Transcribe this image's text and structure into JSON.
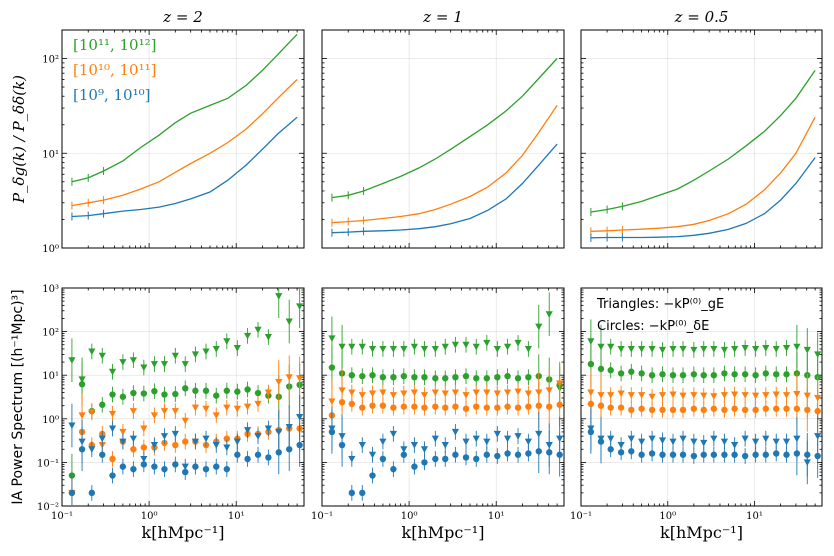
{
  "colors": {
    "high": "#2ca02c",
    "mid": "#ff7f0e",
    "low": "#1f77b4"
  },
  "chart_data": {
    "type": "line",
    "panel_titles": [
      "z = 2",
      "z = 1",
      "z = 0.5"
    ],
    "xlabel": "k[hMpc⁻¹]",
    "xscale": "log",
    "xlim": [
      0.1,
      60
    ],
    "xtick_labels": [
      "10⁻¹",
      "10⁰",
      "10¹"
    ],
    "top_row": {
      "ylabel": "P_δg(k) / P_δδ(k)",
      "yscale": "log",
      "ylim": [
        1,
        200
      ],
      "ytick_labels": [
        "10⁰",
        "10¹",
        "10²"
      ],
      "legend": [
        {
          "label": "[10¹¹, 10¹²]",
          "color": "#2ca02c"
        },
        {
          "label": "[10¹⁰, 10¹¹]",
          "color": "#ff7f0e"
        },
        {
          "label": "[10⁹, 10¹⁰]",
          "color": "#1f77b4"
        }
      ],
      "k": [
        0.13,
        0.2,
        0.3,
        0.5,
        0.8,
        1.3,
        2,
        3,
        5,
        8,
        13,
        20,
        30,
        50
      ],
      "panels": [
        {
          "title": "z = 2",
          "series": [
            {
              "name": "[10¹¹, 10¹²]",
              "values": [
                5.0,
                5.5,
                6.5,
                8.3,
                11.5,
                15.5,
                21,
                26.5,
                32,
                38,
                52,
                75,
                110,
                180
              ]
            },
            {
              "name": "[10¹⁰, 10¹¹]",
              "values": [
                2.8,
                3.0,
                3.2,
                3.6,
                4.2,
                5.0,
                6.3,
                7.8,
                10,
                13,
                18,
                26,
                38,
                60
              ]
            },
            {
              "name": "[10⁹, 10¹⁰]",
              "values": [
                2.15,
                2.2,
                2.3,
                2.45,
                2.55,
                2.7,
                2.95,
                3.3,
                3.9,
                5.2,
                7.5,
                11,
                16,
                24
              ]
            }
          ]
        },
        {
          "title": "z = 1",
          "series": [
            {
              "name": "[10¹¹, 10¹²]",
              "values": [
                3.4,
                3.6,
                4.0,
                4.8,
                5.7,
                7.0,
                8.7,
                11,
                15,
                20,
                28,
                40,
                60,
                100
              ]
            },
            {
              "name": "[10¹⁰, 10¹¹]",
              "values": [
                1.85,
                1.9,
                1.95,
                2.05,
                2.15,
                2.3,
                2.55,
                2.9,
                3.5,
                4.4,
                6.2,
                9.5,
                16,
                32
              ]
            },
            {
              "name": "[10⁹, 10¹⁰]",
              "values": [
                1.45,
                1.47,
                1.5,
                1.52,
                1.55,
                1.6,
                1.68,
                1.8,
                2.05,
                2.5,
                3.3,
                4.8,
                7.3,
                12.5
              ]
            }
          ]
        },
        {
          "title": "z = 0.5",
          "series": [
            {
              "name": "[10¹¹, 10¹²]",
              "values": [
                2.4,
                2.55,
                2.75,
                3.1,
                3.6,
                4.2,
                5.2,
                6.5,
                8.7,
                12,
                17,
                25,
                38,
                75
              ]
            },
            {
              "name": "[10¹⁰, 10¹¹]",
              "values": [
                1.5,
                1.52,
                1.55,
                1.58,
                1.62,
                1.68,
                1.78,
                1.95,
                2.3,
                2.9,
                4.1,
                6.2,
                10,
                24
              ]
            },
            {
              "name": "[10⁹, 10¹⁰]",
              "values": [
                1.28,
                1.29,
                1.29,
                1.29,
                1.3,
                1.32,
                1.36,
                1.43,
                1.57,
                1.82,
                2.3,
                3.2,
                4.8,
                9
              ]
            }
          ]
        }
      ]
    },
    "bottom_row": {
      "ylabel": "IA Power Spectrum [(h⁻¹Mpc)³]",
      "yscale": "log",
      "ylim": [
        0.01,
        1000
      ],
      "ytick_labels": [
        "10⁻²",
        "10⁻¹",
        "10⁰",
        "10¹",
        "10²",
        "10³"
      ],
      "legend_text": [
        "Triangles: −kP⁽⁰⁾_gE",
        "Circles: −kP⁽⁰⁾_δE"
      ],
      "k": [
        0.13,
        0.17,
        0.22,
        0.29,
        0.38,
        0.5,
        0.66,
        0.87,
        1.15,
        1.5,
        2.0,
        2.6,
        3.4,
        4.5,
        5.9,
        7.8,
        10.3,
        13.5,
        17.8,
        23.4,
        30.8,
        40.6,
        53.5
      ],
      "panels": [
        {
          "title": "z = 2",
          "series": [
            {
              "name": "circles [10¹¹, 10¹²]",
              "marker": "circle",
              "values": [
                0.05,
                6.2,
                1.5,
                2.1,
                3.6,
                3.2,
                3.9,
                3.8,
                4.3,
                3.6,
                3.7,
                5.0,
                4.4,
                4.4,
                3.4,
                4.4,
                4.2,
                4.7,
                3.9,
                3.4,
                3.2,
                5.5,
                6.0
              ]
            },
            {
              "name": "triangles [10¹¹, 10¹²]",
              "marker": "triangle",
              "values": [
                22,
                8.0,
                35,
                28,
                12,
                20,
                22,
                15,
                18,
                18,
                28,
                18,
                30,
                35,
                40,
                60,
                42,
                80,
                110,
                75,
                650,
                170,
                380
              ]
            },
            {
              "name": "circles [10¹⁰, 10¹¹]",
              "marker": "circle",
              "values": [
                0.02,
                0.5,
                0.25,
                0.45,
                0.12,
                0.3,
                0.2,
                0.22,
                0.22,
                0.28,
                0.25,
                0.3,
                0.3,
                0.25,
                0.3,
                0.35,
                0.35,
                0.45,
                0.45,
                0.5,
                0.55,
                0.6,
                0.6
              ]
            },
            {
              "name": "triangles [10¹⁰, 10¹¹]",
              "marker": "triangle",
              "values": [
                0.02,
                1.2,
                1.4,
                0.25,
                1.3,
                0.5,
                1.5,
                0.6,
                1.2,
                1.5,
                1.5,
                0.9,
                1.8,
                1.7,
                1.2,
                1.8,
                1.7,
                1.9,
                2.2,
                4.0,
                7.0,
                9.0,
                8.5
              ]
            },
            {
              "name": "circles [10⁹, 10¹⁰]",
              "marker": "circle",
              "values": [
                0.02,
                0.2,
                0.02,
                0.15,
                0.05,
                0.08,
                0.07,
                0.09,
                0.08,
                0.07,
                0.09,
                0.06,
                0.08,
                0.07,
                0.08,
                0.07,
                0.15,
                0.12,
                0.15,
                0.13,
                0.17,
                0.2,
                0.25
              ]
            },
            {
              "name": "triangles [10⁹, 10¹⁰]",
              "marker": "triangle",
              "values": [
                0.7,
                0.3,
                0.2,
                0.35,
                0.6,
                0.3,
                0.35,
                0.12,
                0.25,
                0.4,
                0.45,
                0.08,
                0.3,
                0.35,
                0.25,
                0.22,
                0.3,
                0.55,
                0.4,
                0.6,
                0.5,
                0.65,
                1.1
              ]
            }
          ]
        },
        {
          "title": "z = 1",
          "series": [
            {
              "name": "circles [10¹¹, 10¹²]",
              "marker": "circle",
              "values": [
                15,
                11,
                10,
                9.5,
                10,
                9.0,
                9.0,
                9.5,
                9.0,
                9.0,
                8.5,
                8.5,
                9.0,
                9.5,
                8.5,
                8.5,
                9.0,
                9.5,
                8.5,
                9.0,
                9.5,
                8.0,
                6.0
              ]
            },
            {
              "name": "triangles [10¹¹, 10¹²]",
              "marker": "triangle",
              "values": [
                70,
                45,
                45,
                45,
                40,
                40,
                40,
                40,
                45,
                40,
                40,
                45,
                50,
                50,
                45,
                55,
                40,
                45,
                55,
                40,
                130,
                250,
                5.0
              ]
            },
            {
              "name": "circles [10¹⁰, 10¹¹]",
              "marker": "circle",
              "values": [
                1.2,
                2.4,
                2.2,
                1.8,
                2.0,
                2.0,
                1.8,
                1.9,
                1.9,
                1.8,
                1.9,
                1.8,
                1.9,
                1.7,
                1.9,
                1.8,
                1.8,
                1.9,
                1.8,
                1.9,
                2.0,
                1.9,
                2.1
              ]
            },
            {
              "name": "triangles [10¹⁰, 10¹¹]",
              "marker": "triangle",
              "values": [
                2.5,
                4.5,
                4.0,
                3.5,
                3.8,
                4.0,
                3.5,
                3.8,
                4.0,
                3.5,
                4.0,
                3.8,
                4.0,
                3.5,
                4.0,
                4.0,
                3.8,
                4.0,
                4.2,
                3.8,
                4.0,
                4.5,
                6.5
              ]
            },
            {
              "name": "circles [10⁹, 10¹⁰]",
              "marker": "circle",
              "values": [
                0.5,
                0.25,
                0.02,
                0.02,
                0.05,
                0.12,
                0.07,
                0.15,
                0.08,
                0.1,
                0.12,
                0.12,
                0.15,
                0.13,
                0.12,
                0.15,
                0.14,
                0.16,
                0.15,
                0.16,
                0.18,
                0.17,
                0.15
              ]
            },
            {
              "name": "triangles [10⁹, 10¹⁰]",
              "marker": "triangle",
              "values": [
                0.6,
                0.4,
                0.12,
                0.25,
                0.15,
                0.3,
                0.45,
                0.2,
                0.25,
                0.2,
                0.35,
                0.25,
                0.5,
                0.3,
                0.35,
                0.3,
                0.45,
                0.35,
                0.4,
                0.3,
                0.45,
                0.25,
                0.35
              ]
            }
          ]
        },
        {
          "title": "z = 0.5",
          "series": [
            {
              "name": "circles [10¹¹, 10¹²]",
              "marker": "circle",
              "values": [
                18,
                14,
                13,
                11,
                12,
                11,
                10,
                10.5,
                10,
                10,
                10.5,
                10,
                10,
                11,
                10.5,
                10.5,
                10,
                11,
                10.5,
                10.5,
                11,
                10,
                9.0
              ]
            },
            {
              "name": "triangles [10¹¹, 10¹²]",
              "marker": "triangle",
              "values": [
                60,
                45,
                45,
                40,
                40,
                40,
                40,
                38,
                40,
                40,
                38,
                40,
                40,
                38,
                40,
                42,
                40,
                42,
                40,
                42,
                45,
                38,
                30
              ]
            },
            {
              "name": "circles [10¹⁰, 10¹¹]",
              "marker": "circle",
              "values": [
                2.2,
                2.0,
                1.8,
                1.8,
                1.6,
                1.7,
                1.6,
                1.6,
                1.6,
                1.6,
                1.7,
                1.6,
                1.7,
                1.6,
                1.7,
                1.6,
                1.6,
                1.7,
                1.7,
                1.7,
                1.7,
                1.6,
                1.5
              ]
            },
            {
              "name": "triangles [10¹⁰, 10¹¹]",
              "marker": "triangle",
              "values": [
                4.0,
                3.5,
                3.5,
                3.8,
                3.5,
                3.5,
                3.2,
                3.5,
                3.6,
                3.4,
                3.5,
                3.4,
                3.3,
                3.5,
                3.6,
                3.5,
                3.4,
                3.5,
                3.6,
                3.5,
                3.7,
                3.4,
                3.0
              ]
            },
            {
              "name": "circles [10⁹, 10¹⁰]",
              "marker": "circle",
              "values": [
                0.5,
                0.3,
                0.2,
                0.17,
                0.18,
                0.15,
                0.16,
                0.15,
                0.15,
                0.15,
                0.14,
                0.15,
                0.15,
                0.15,
                0.15,
                0.14,
                0.15,
                0.15,
                0.16,
                0.15,
                0.16,
                0.15,
                0.14
              ]
            },
            {
              "name": "triangles [10⁹, 10¹⁰]",
              "marker": "triangle",
              "values": [
                0.6,
                0.35,
                0.35,
                0.25,
                0.35,
                0.3,
                0.35,
                0.32,
                0.3,
                0.35,
                0.3,
                0.28,
                0.35,
                0.3,
                0.25,
                0.35,
                0.3,
                0.35,
                0.3,
                0.3,
                0.35,
                0.1,
                0.4
              ]
            }
          ]
        }
      ]
    }
  }
}
